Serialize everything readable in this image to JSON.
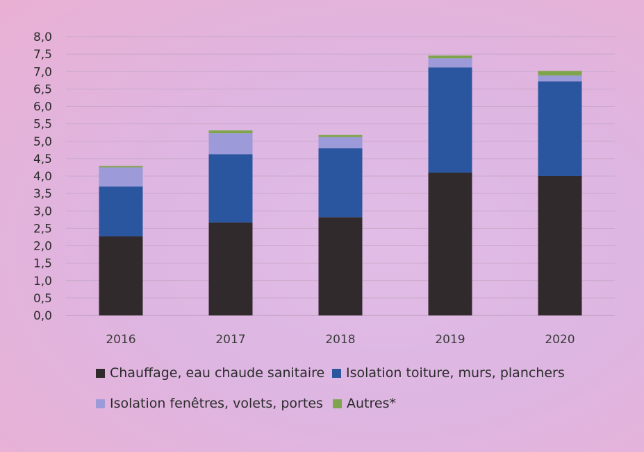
{
  "chart_data": {
    "type": "bar",
    "stacked": true,
    "title": "",
    "xlabel": "",
    "ylabel": "",
    "ylim": [
      0,
      8
    ],
    "yticks": [
      "0,0",
      "0,5",
      "1,0",
      "1,5",
      "2,0",
      "2,5",
      "3,0",
      "3,5",
      "4,0",
      "4,5",
      "5,0",
      "5,5",
      "6,0",
      "6,5",
      "7,0",
      "7,5",
      "8,0"
    ],
    "ytick_values": [
      0,
      0.5,
      1,
      1.5,
      2,
      2.5,
      3,
      3.5,
      4,
      4.5,
      5,
      5.5,
      6,
      6.5,
      7,
      7.5,
      8
    ],
    "grid": true,
    "categories": [
      "2016",
      "2017",
      "2018",
      "2019",
      "2020"
    ],
    "series": [
      {
        "name": "Chauffage, eau chaude sanitaire",
        "color": "#312a2d",
        "values": [
          2.27,
          2.67,
          2.82,
          4.1,
          4.0
        ]
      },
      {
        "name": "Isolation toiture, murs, planchers",
        "color": "#2a56a0",
        "values": [
          1.43,
          1.96,
          1.98,
          3.02,
          2.72
        ]
      },
      {
        "name": "Isolation fenêtres, volets, portes",
        "color": "#9c9ad8",
        "values": [
          0.55,
          0.6,
          0.32,
          0.26,
          0.17
        ]
      },
      {
        "name": "Autres*",
        "color": "#7fa54c",
        "values": [
          0.04,
          0.08,
          0.06,
          0.08,
          0.13
        ]
      }
    ],
    "legend_position": "bottom"
  }
}
